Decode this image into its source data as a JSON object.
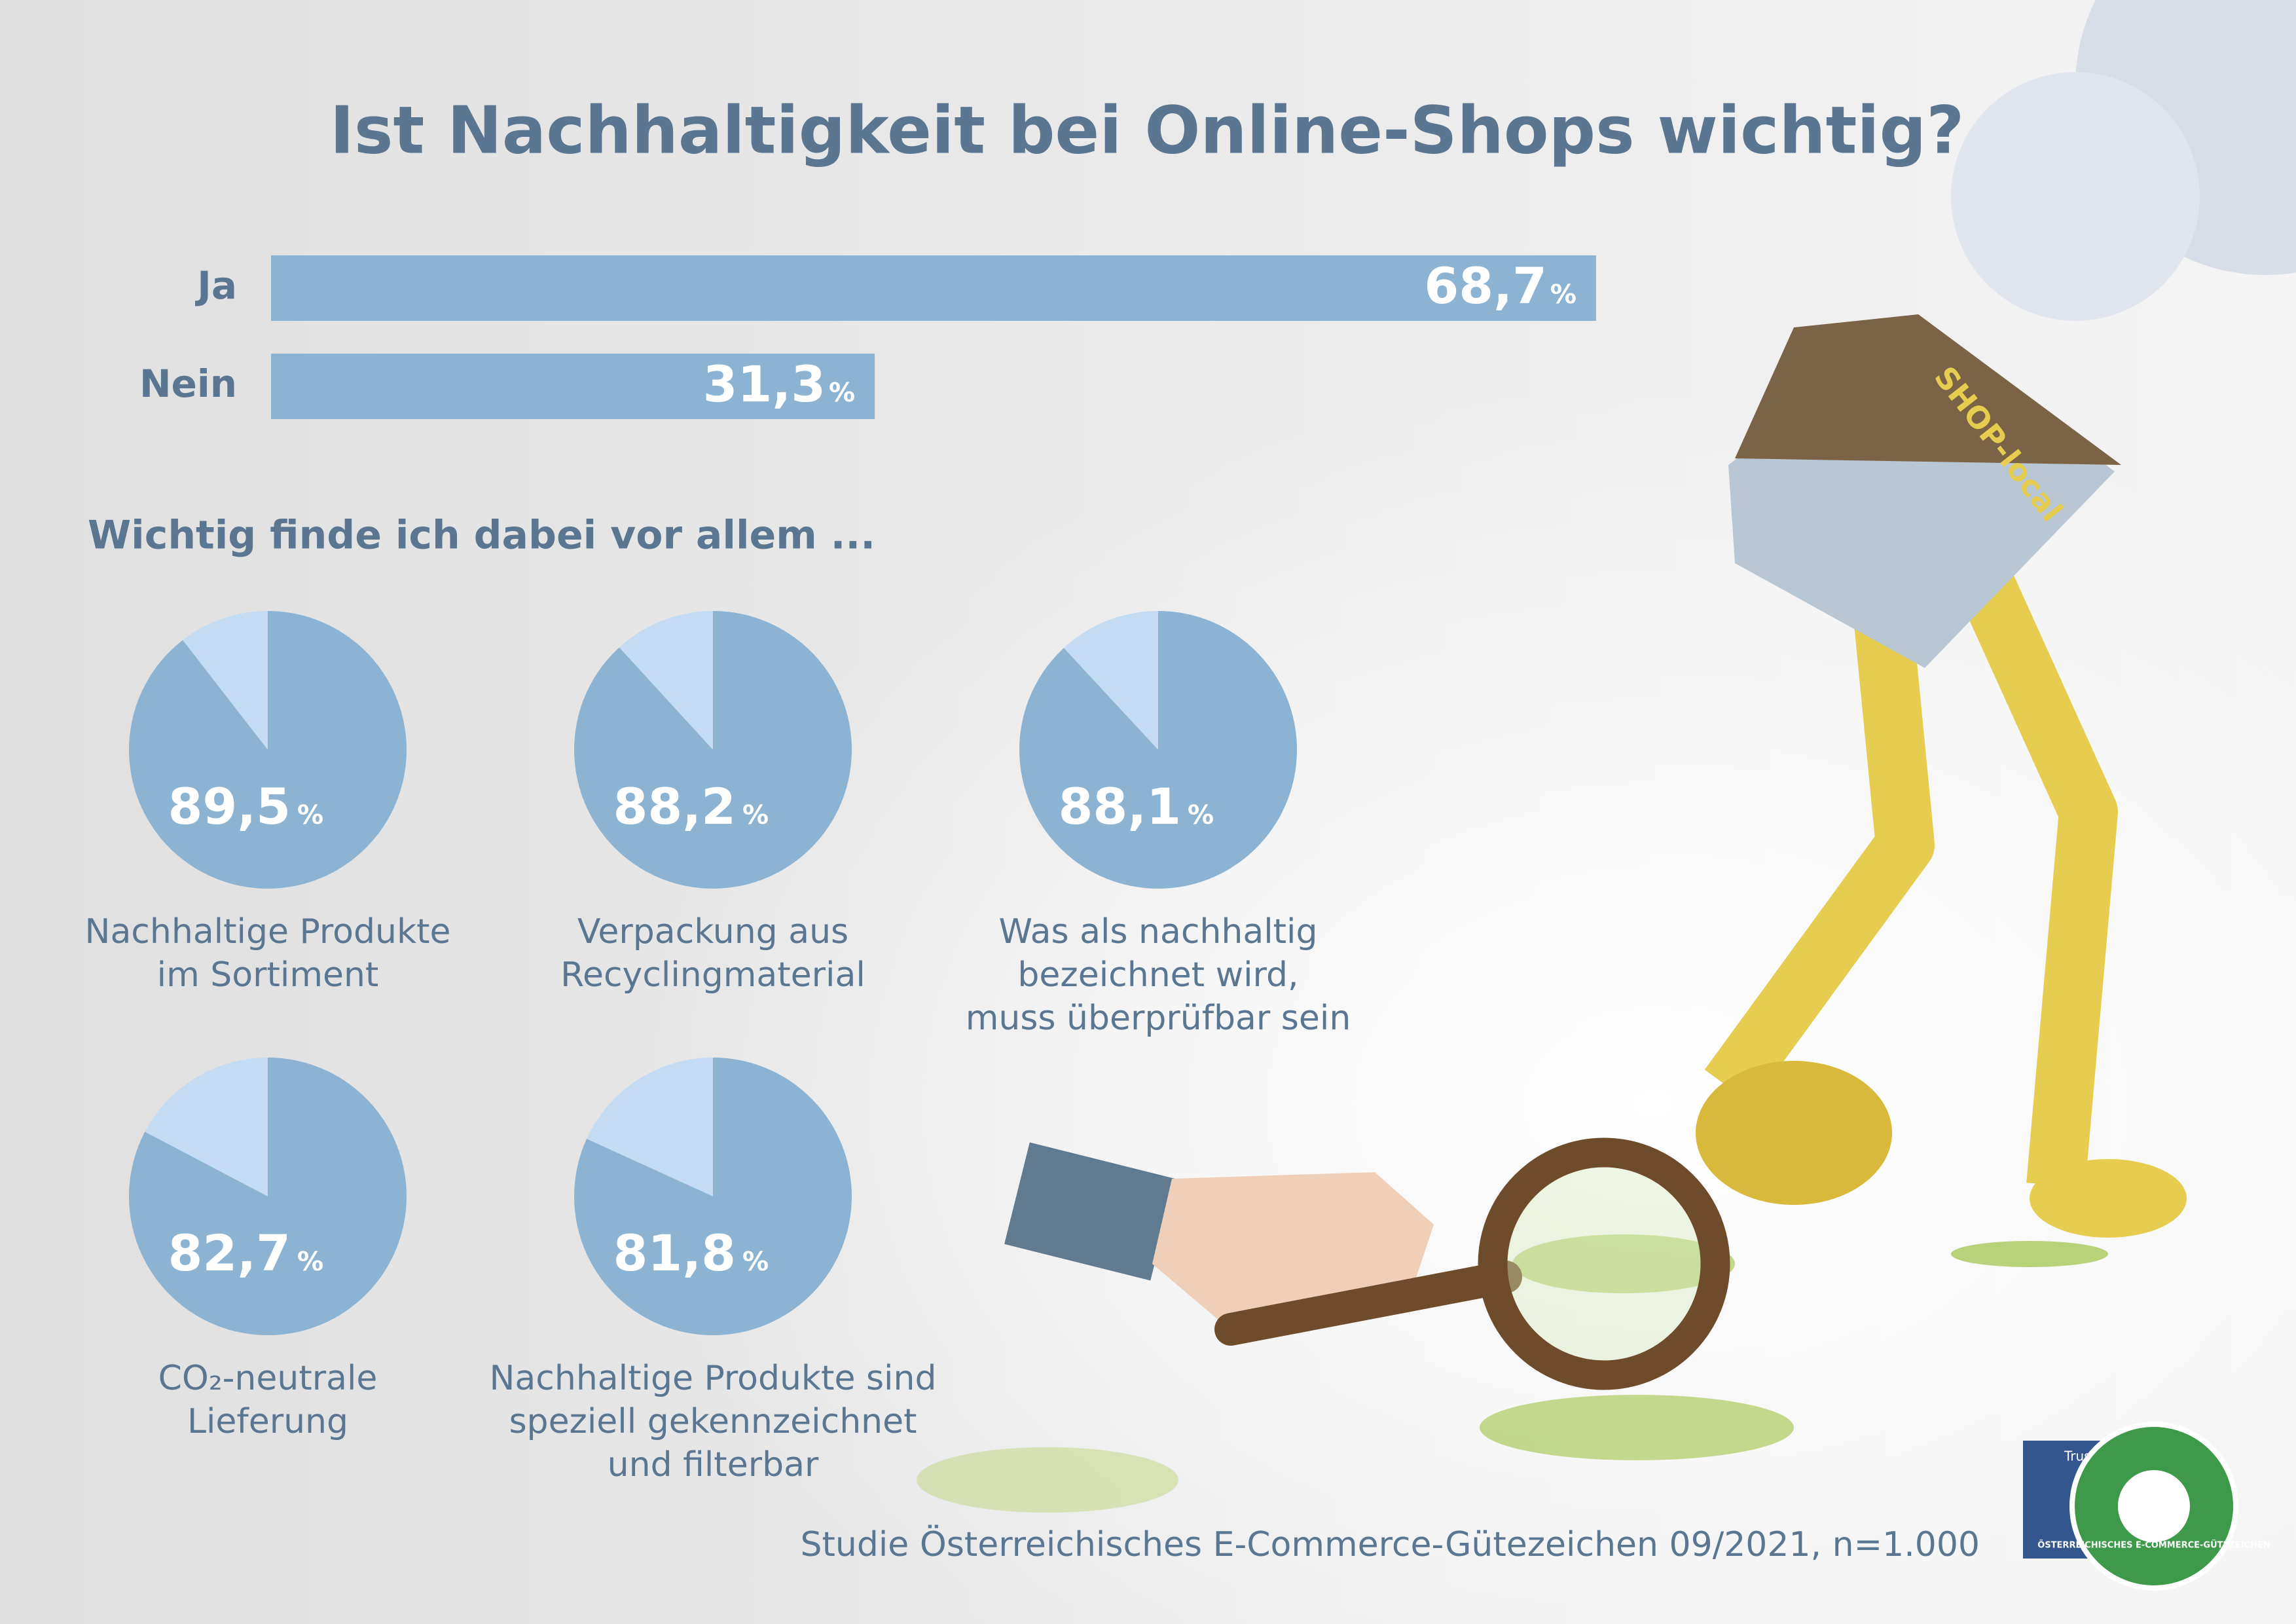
{
  "chart_data": [
    {
      "type": "bar",
      "title": "Ist Nachhaltigkeit bei Online-Shops wichtig?",
      "categories": [
        "Ja",
        "Nein"
      ],
      "values": [
        68.7,
        31.3
      ],
      "value_labels": [
        "68,7",
        "31,3"
      ],
      "unit": "%",
      "color": "#8db3d3",
      "xlim": [
        0,
        100
      ]
    },
    {
      "type": "pie",
      "subtitle": "Wichtig finde ich dabei vor allem ...",
      "categories": [
        "Nachhaltige Produkte\nim Sortiment",
        "Verpackung aus\nRecyclingmaterial",
        "Was als nachhaltig\nbezeichnet wird,\nmuss überprüfbar sein",
        "CO₂-neutrale\nLieferung",
        "Nachhaltige Produkte sind\nspeziell gekennzeichnet\nund filterbar"
      ],
      "values": [
        89.5,
        88.2,
        88.1,
        82.7,
        81.8
      ],
      "value_labels": [
        "89,5",
        "88,2",
        "88,1",
        "82,7",
        "81,8"
      ],
      "unit": "%",
      "color": "#8db3d3",
      "rest_color": "#c4dcf3"
    }
  ],
  "source": "Studie Österreichisches E-Commerce-Gütezeichen 09/2021, n=1.000",
  "illustration_text": "SHOP-local",
  "logo": {
    "trust_mark": "Trust Mark",
    "name": "ÖSTERREICHISCHES E-COMMERCE-GÜTEZEICHEN"
  }
}
